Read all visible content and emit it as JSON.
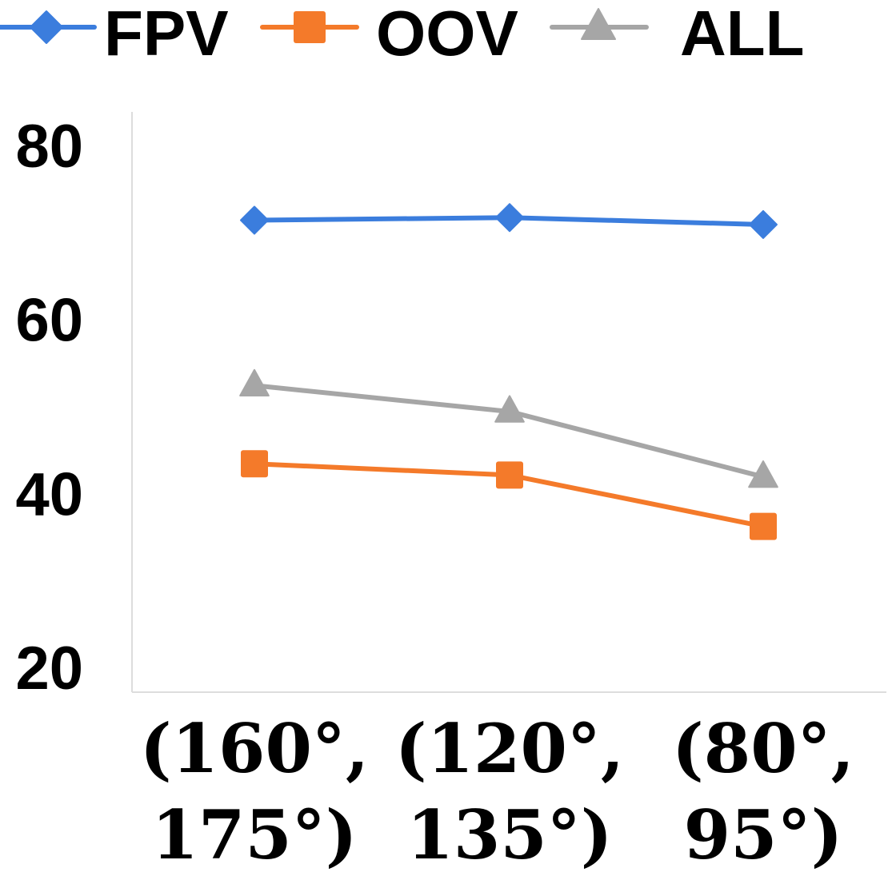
{
  "chart_data": {
    "type": "line",
    "categories": [
      {
        "line1": "(160°,",
        "line2": "175°)"
      },
      {
        "line1": "(120°,",
        "line2": "135°)"
      },
      {
        "line1": "(80°,",
        "line2": "95°)"
      }
    ],
    "series": [
      {
        "name": "FPV",
        "marker": "diamond",
        "color": "#3b7ddd",
        "values": [
          71.5,
          71.8,
          71.0
        ]
      },
      {
        "name": "OOV",
        "marker": "square",
        "color": "#f47a2a",
        "values": [
          43.5,
          42.2,
          36.3
        ]
      },
      {
        "name": "ALL",
        "marker": "triangle",
        "color": "#a6a6a6",
        "values": [
          52.5,
          49.5,
          42.0
        ]
      }
    ],
    "yticks": [
      "20",
      "40",
      "60",
      "80"
    ],
    "ylim": [
      20,
      80
    ],
    "grid": false,
    "legend_position": "top",
    "title": "",
    "xlabel": "",
    "ylabel": ""
  }
}
